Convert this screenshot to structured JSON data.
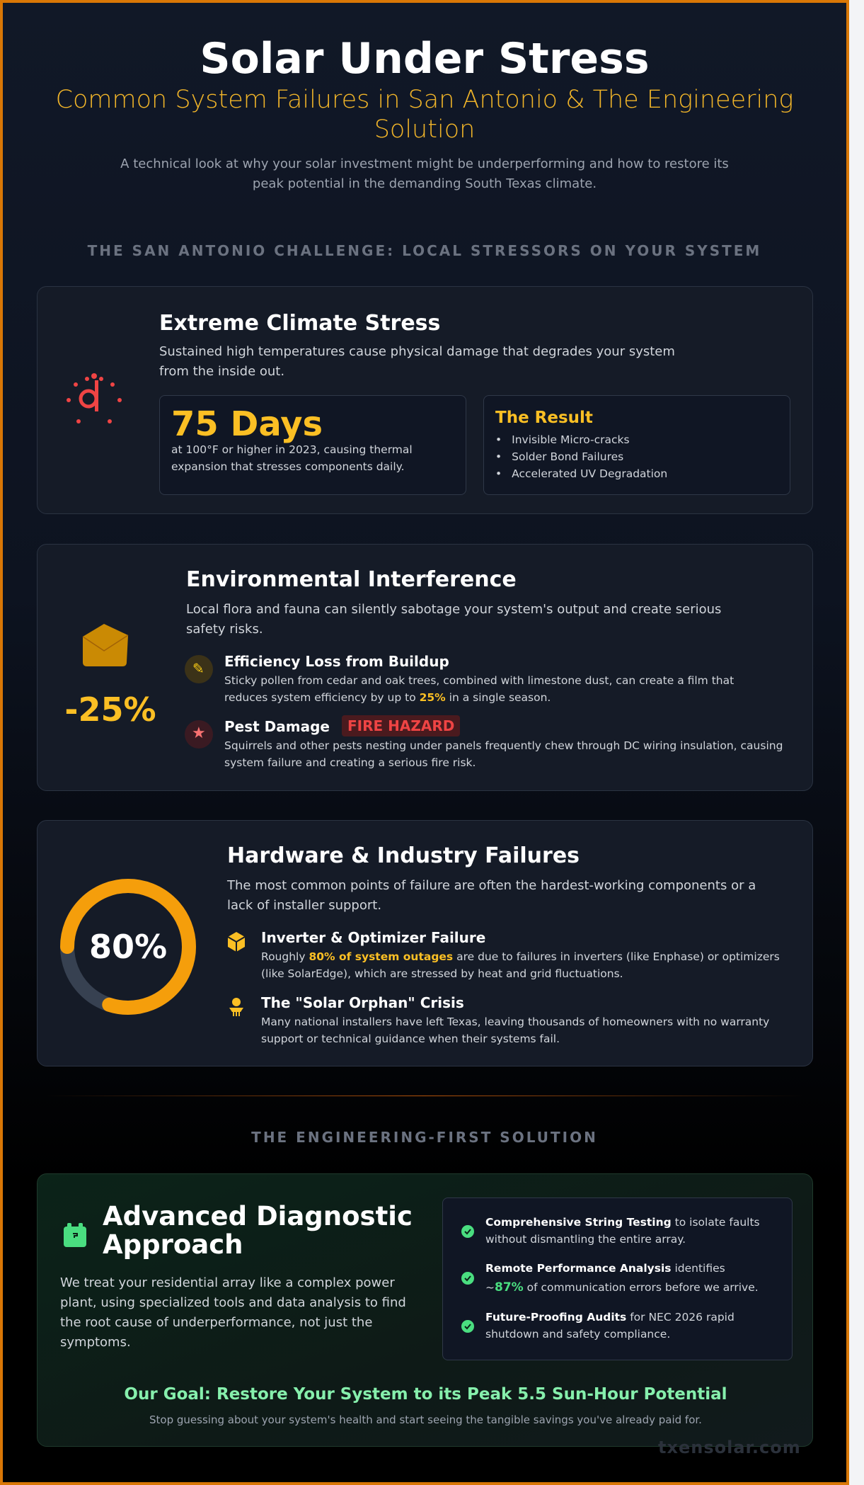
{
  "header": {
    "title": "Solar Under Stress",
    "subtitle": "Common System Failures in San Antonio & The Engineering Solution",
    "lead": "A technical look at why your solar investment might be underperforming and how to restore its peak potential in the demanding South Texas climate."
  },
  "section1": "THE SAN ANTONIO CHALLENGE: LOCAL STRESSORS ON YOUR SYSTEM",
  "climate": {
    "icon": "sun-heat-icon",
    "title": "Extreme Climate Stress",
    "desc": "Sustained high temperatures cause physical damage that degrades your system from the inside out.",
    "stat": "75 Days",
    "stat_desc": "at 100°F or higher in 2023, causing thermal expansion that stresses components daily.",
    "result_title": "The Result",
    "results": [
      "Invisible Micro-cracks",
      "Solder Bond Failures",
      "Accelerated UV Degradation"
    ]
  },
  "env": {
    "icon": "box-icon",
    "stat": "-25%",
    "title": "Environmental Interference",
    "desc": "Local flora and fauna can silently sabotage your system's output and create serious safety risks.",
    "item1": {
      "title": "Efficiency Loss from Buildup",
      "pre": "Sticky pollen from cedar and oak trees, combined with limestone dust, can create a film that reduces system efficiency by up to ",
      "hl": "25%",
      "post": " in a single season."
    },
    "item2": {
      "title": "Pest Damage",
      "badge": "FIRE HAZARD",
      "text": "Squirrels and other pests nesting under panels frequently chew through DC wiring insulation, causing system failure and creating a serious fire risk."
    }
  },
  "hw": {
    "donut_label": "80%",
    "donut_value": 80,
    "title": "Hardware & Industry Failures",
    "desc": "The most common points of failure are often the hardest-working components or a lack of installer support.",
    "item1": {
      "title": "Inverter & Optimizer Failure",
      "pre": "Roughly ",
      "hl": "80% of system outages",
      "post": " are due to failures in inverters (like Enphase) or optimizers (like SolarEdge), which are stressed by heat and grid fluctuations."
    },
    "item2": {
      "title": "The \"Solar Orphan\" Crisis",
      "text": "Many national installers have left Texas, leaving thousands of homeowners with no warranty support or technical guidance when their systems fail."
    }
  },
  "section2": "THE ENGINEERING-FIRST SOLUTION",
  "solution": {
    "title": "Advanced Diagnostic Approach",
    "desc": "We treat your residential array like a complex power plant, using specialized tools and data analysis to find the root cause of underperformance, not just the symptoms.",
    "checks": [
      {
        "b": "Comprehensive String Testing",
        "t": " to isolate faults without dismantling the entire array."
      },
      {
        "b": "Remote Performance Analysis",
        "t1": " identifies ",
        "pre": "~",
        "hl": "87%",
        "t": " of communication errors before we arrive."
      },
      {
        "b": "Future-Proofing Audits",
        "t": " for NEC 2026 rapid shutdown and safety compliance."
      }
    ],
    "goal": "Our Goal: Restore Your System to its Peak 5.5 Sun-Hour Potential",
    "goal_sub": "Stop guessing about your system's health and start seeing the tangible savings you've already paid for."
  },
  "watermark": "txensolar.com",
  "colors": {
    "accent": "#fbbf24",
    "border": "#d97706",
    "danger": "#ef4444",
    "success": "#4ade80"
  }
}
